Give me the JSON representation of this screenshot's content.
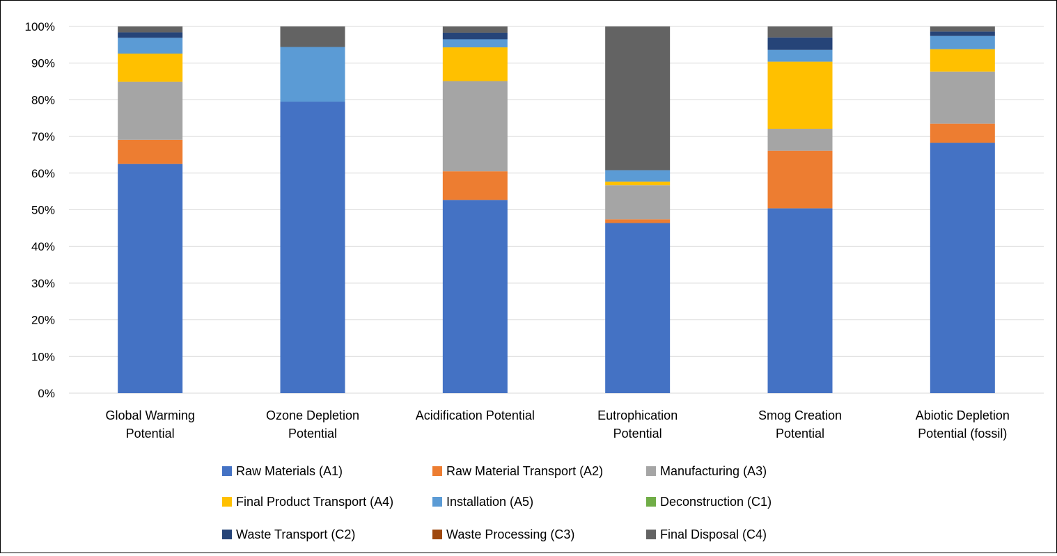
{
  "chart_data": {
    "type": "bar",
    "stacked": true,
    "normalized_percent": true,
    "title": "",
    "xlabel": "",
    "ylabel": "",
    "ylim": [
      0,
      100
    ],
    "yticks": [
      "0%",
      "10%",
      "20%",
      "30%",
      "40%",
      "50%",
      "60%",
      "70%",
      "80%",
      "90%",
      "100%"
    ],
    "grid": true,
    "legend_position": "bottom",
    "categories": [
      [
        "Global Warming",
        "Potential"
      ],
      [
        "Ozone Depletion",
        "Potential"
      ],
      [
        "Acidification Potential"
      ],
      [
        "Eutrophication",
        "Potential"
      ],
      [
        "Smog Creation",
        "Potential"
      ],
      [
        "Abiotic Depletion",
        "Potential (fossil)"
      ]
    ],
    "series": [
      {
        "name": "Raw Materials (A1)",
        "color": "#4472C4",
        "values": [
          62.5,
          79.5,
          52.7,
          46.4,
          50.4,
          68.3
        ]
      },
      {
        "name": "Raw Material Transport (A2)",
        "color": "#ED7D31",
        "values": [
          6.6,
          0.0,
          7.8,
          1.0,
          15.7,
          5.2
        ]
      },
      {
        "name": "Manufacturing (A3)",
        "color": "#A5A5A5",
        "values": [
          15.8,
          0.0,
          24.6,
          9.3,
          6.0,
          14.2
        ]
      },
      {
        "name": "Final Product Transport (A4)",
        "color": "#FFC000",
        "values": [
          7.7,
          0.0,
          9.2,
          1.0,
          18.3,
          6.1
        ]
      },
      {
        "name": "Installation (A5)",
        "color": "#5B9BD5",
        "values": [
          4.3,
          14.9,
          2.2,
          3.1,
          3.2,
          3.6
        ]
      },
      {
        "name": "Deconstruction (C1)",
        "color": "#70AD47",
        "values": [
          0.0,
          0.0,
          0.0,
          0.0,
          0.0,
          0.0
        ]
      },
      {
        "name": "Waste Transport (C2)",
        "color": "#264478",
        "values": [
          1.5,
          0.0,
          1.8,
          0.0,
          3.4,
          1.2
        ]
      },
      {
        "name": "Waste Processing (C3)",
        "color": "#9E480E",
        "values": [
          0.0,
          0.0,
          0.0,
          0.0,
          0.0,
          0.0
        ]
      },
      {
        "name": "Final Disposal (C4)",
        "color": "#636363",
        "values": [
          1.6,
          5.6,
          1.7,
          39.2,
          3.0,
          1.4
        ]
      }
    ]
  }
}
